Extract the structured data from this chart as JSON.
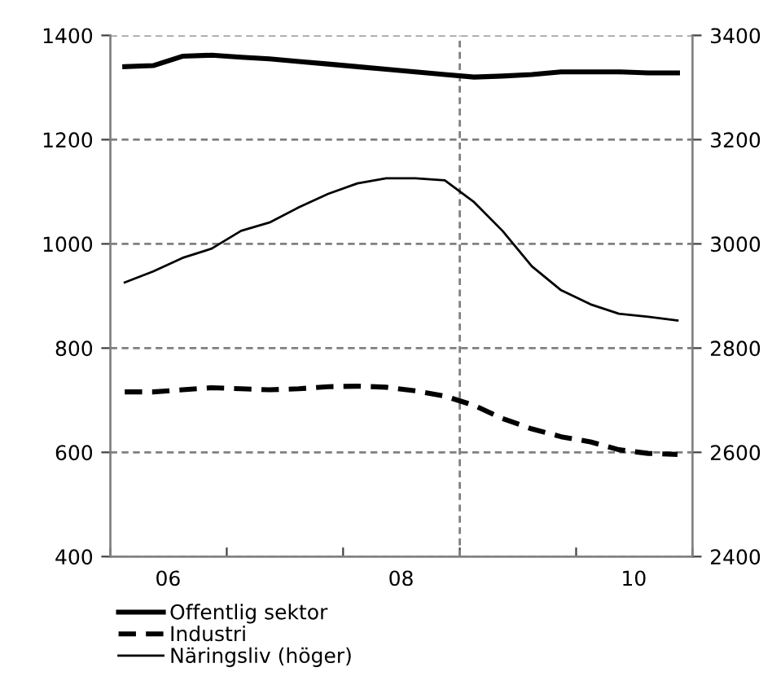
{
  "chart_data": {
    "type": "line",
    "x": [
      "2006-02-15",
      "2006-05-15",
      "2006-08-15",
      "2006-11-15",
      "2007-02-15",
      "2007-05-15",
      "2007-08-15",
      "2007-11-15",
      "2008-02-15",
      "2008-05-15",
      "2008-08-15",
      "2008-11-15",
      "2009-02-15",
      "2009-05-15",
      "2009-08-15",
      "2009-11-15",
      "2010-02-15",
      "2010-05-15",
      "2010-08-15",
      "2010-11-15"
    ],
    "series": [
      {
        "name": "Offentlig sektor",
        "color": "#000000",
        "line_style": "solid",
        "values": [
          1340,
          1342,
          1360,
          1362,
          1358,
          1355,
          1350,
          1345,
          1340,
          1335,
          1330,
          1325,
          1320,
          1322,
          1325,
          1330,
          1330,
          1330,
          1328,
          1328
        ]
      },
      {
        "name": "Industri",
        "color": "#000000",
        "line_style": "dashed",
        "values": [
          716,
          716,
          720,
          724,
          722,
          720,
          722,
          726,
          727,
          725,
          718,
          708,
          690,
          665,
          645,
          630,
          620,
          605,
          598,
          596
        ]
      },
      {
        "name": "Näringsliv (höger)",
        "color": "#000000",
        "line_style": "solid",
        "axis": "y2",
        "values": [
          2926,
          2947,
          2973,
          2991,
          3025,
          3041,
          3070,
          3096,
          3116,
          3126,
          3126,
          3122,
          3080,
          3025,
          2957,
          2911,
          2884,
          2866,
          2860,
          2853
        ]
      }
    ],
    "xlim": [
      "2006-01-01",
      "2011-01-01"
    ],
    "xticks": [
      {
        "value": "2006-01-01",
        "label": null
      },
      {
        "value": "2006-07-01",
        "label": "06"
      },
      {
        "value": "2007-01-01",
        "label": null
      },
      {
        "value": "2008-01-01",
        "label": null
      },
      {
        "value": "2008-07-01",
        "label": "08"
      },
      {
        "value": "2009-01-01",
        "label": null
      },
      {
        "value": "2010-01-01",
        "label": null
      },
      {
        "value": "2010-07-01",
        "label": "10"
      },
      {
        "value": "2011-01-01",
        "label": null
      }
    ],
    "ylim": [
      400,
      1400
    ],
    "yticks": [
      400,
      600,
      800,
      1000,
      1200,
      1400
    ],
    "y2lim": [
      2400,
      3400
    ],
    "y2ticks": [
      2400,
      2600,
      2800,
      3000,
      3200,
      3400
    ],
    "ref_lines": [
      {
        "axis": "x",
        "value": "2009-01-01",
        "color": "#808080",
        "line_style": "dashed"
      }
    ],
    "grid": "y",
    "legend": "bottom",
    "marker": "none"
  }
}
